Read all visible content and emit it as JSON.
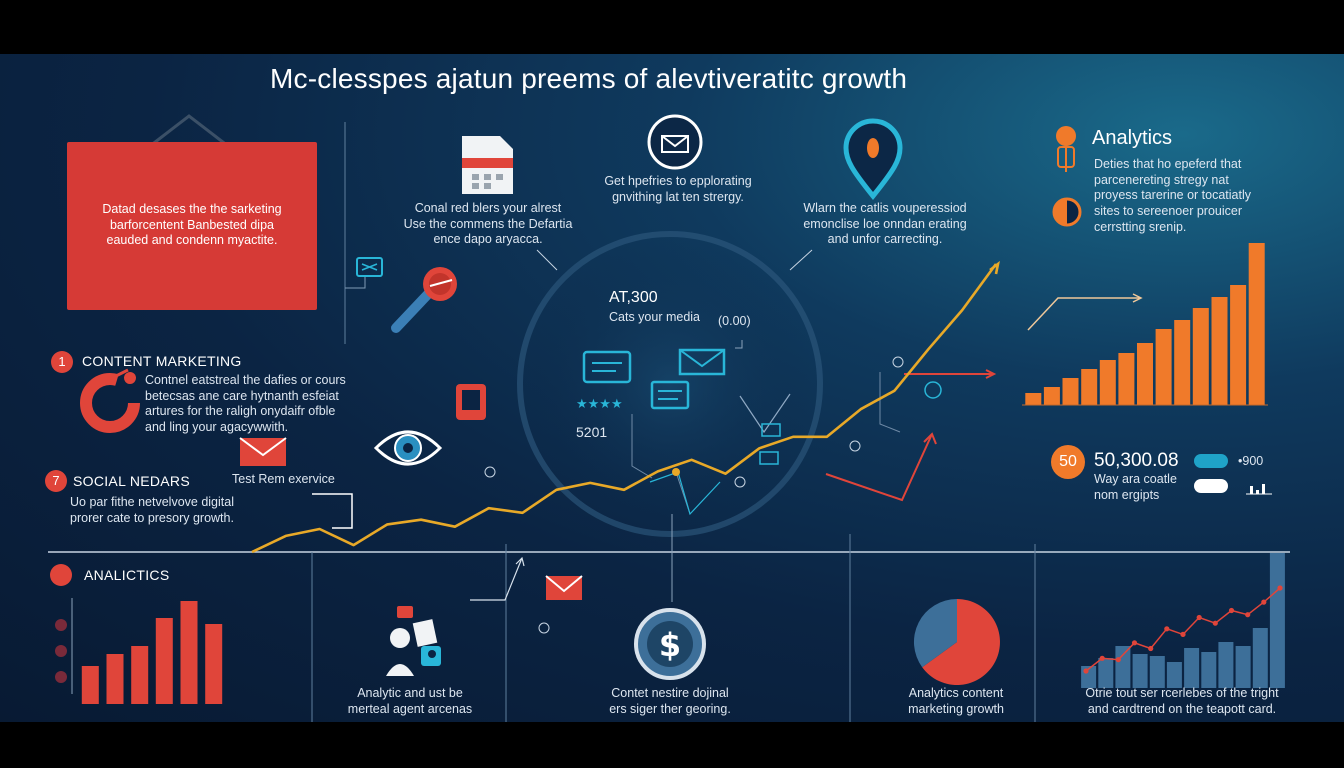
{
  "title": "Mc-clesspes ajatun preems of alevtiveratitc growth",
  "red_panel": {
    "line1": "Datad desases the the sarketing",
    "line2": "barforcentent Banbested dipa",
    "line3": "eauded and condenn myactite."
  },
  "calendar_caption": {
    "line1": "Conal red blers your alrest",
    "line2": "Use the commens the Defartia",
    "line3": "ence dapo aryacca."
  },
  "email_caption": {
    "line1": "Get hpefries to epplorating",
    "line2": "gnvithing lat ten strergy."
  },
  "location_caption": {
    "line1": "Wlarn the catlis vouperessiod",
    "line2": "emonclise loe onndan erating",
    "line3": "and unfor carrecting."
  },
  "analytics_panel": {
    "title": "Analytics",
    "line1": "Deties that ho epeferd that",
    "line2": "parcenereting stregy nat",
    "line3": "proyess tarerine or tocatiatly",
    "line4": "sites to sereenoer prouicer",
    "line5": "cerrstting srenip."
  },
  "content_marketing": {
    "number": "1",
    "heading": "CONTENT MARKETING",
    "line1": "Contnel eatstreal the dafies or cours",
    "line2": "betecsas ane care hytnanth esfeiat",
    "line3": "artures for the raligh onydaifr ofble",
    "line4": "and ling your agacywwith."
  },
  "social": {
    "number": "7",
    "heading": "SOCIAL NEDARS",
    "line1": "Uo par fithe netvelvove digital",
    "line2": "prorer cate to presory growth."
  },
  "test_label": "Test Rem exervice",
  "center": {
    "stat": "AT,300",
    "stat_caption": "Cats your media",
    "value_badge": "(0.00)",
    "value_left": "5201"
  },
  "right_stats": {
    "circle": "50",
    "big_number": "50,300.08",
    "caption1": "Way ara coatle",
    "caption2": "nom ergipts",
    "side_value": "•900"
  },
  "bottom": {
    "analytics_heading": "ANALICTICS",
    "caption_a1": "Analytic and ust be",
    "caption_a2": "merteal agent arcenas",
    "caption_b1": "Contet nestire dojinal",
    "caption_b2": "ers siger ther georing.",
    "caption_c1": "Analytics content",
    "caption_c2": "marketing growth",
    "caption_d1": "Otrie tout ser rcerlebes of the tright",
    "caption_d2": "and cardtrend on the teapott card."
  },
  "colors": {
    "red": "#e0453a",
    "orange": "#f07a2a",
    "gold": "#e8a928",
    "cyan": "#29b6d8",
    "steel": "#3d6f99"
  },
  "chart_data": [
    {
      "type": "bar",
      "name_hint": "right-orange-bars",
      "values": [
        12,
        18,
        27,
        36,
        45,
        52,
        62,
        76,
        85,
        97,
        108,
        120,
        162
      ],
      "ylim": [
        0,
        170
      ]
    },
    {
      "type": "bar",
      "name_hint": "bottom-left-red-bars",
      "values": [
        38,
        50,
        58,
        86,
        103,
        80
      ],
      "ylim": [
        0,
        120
      ]
    },
    {
      "type": "bar",
      "name_hint": "bottom-right-blue-bars",
      "values": [
        22,
        30,
        42,
        34,
        32,
        26,
        40,
        36,
        46,
        42,
        60,
        135
      ],
      "ylim": [
        0,
        140
      ]
    },
    {
      "type": "pie",
      "name_hint": "bottom-pie",
      "values": [
        65,
        35
      ]
    },
    {
      "type": "line",
      "name_hint": "main-growth-line",
      "y": [
        0,
        14,
        20,
        6,
        24,
        28,
        22,
        38,
        34,
        54,
        60,
        54,
        70,
        80,
        68,
        90,
        100,
        100,
        124,
        140,
        176,
        210,
        250
      ]
    },
    {
      "type": "line",
      "name_hint": "bottom-right-red-line",
      "y": [
        10,
        28,
        26,
        50,
        42,
        70,
        62,
        86,
        78,
        96,
        90,
        108,
        128
      ]
    }
  ]
}
